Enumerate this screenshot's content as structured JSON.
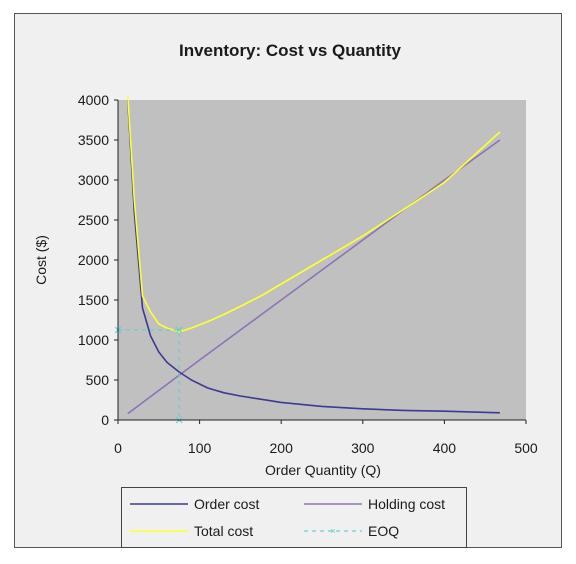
{
  "chart_data": {
    "type": "line",
    "title": "Inventory: Cost vs Quantity",
    "xlabel": "Order Quantity (Q)",
    "ylabel": "Cost ($)",
    "xlim": [
      0,
      500
    ],
    "ylim": [
      0,
      4000
    ],
    "x_ticks": [
      "0",
      "100",
      "200",
      "300",
      "400",
      "500"
    ],
    "y_ticks": [
      "0",
      "500",
      "1000",
      "1500",
      "2000",
      "2500",
      "3000",
      "3500",
      "4000"
    ],
    "grid": false,
    "legend_position": "bottom",
    "plot_background": "#c0c0c0",
    "series": [
      {
        "name": "Order cost",
        "color": "#3b3b8f",
        "dash": "solid",
        "x": [
          12,
          20,
          30,
          40,
          50,
          60,
          75,
          90,
          110,
          130,
          150,
          175,
          200,
          250,
          300,
          350,
          400,
          468
        ],
        "y": [
          4000,
          2600,
          1400,
          1050,
          850,
          720,
          600,
          500,
          400,
          340,
          300,
          260,
          220,
          170,
          140,
          120,
          110,
          90
        ]
      },
      {
        "name": "Holding cost",
        "color": "#8c74b6",
        "dash": "solid",
        "x": [
          12,
          100,
          200,
          300,
          400,
          468
        ],
        "y": [
          80,
          750,
          1500,
          2250,
          3000,
          3500
        ]
      },
      {
        "name": "Total cost",
        "color": "#ffff33",
        "dash": "solid",
        "x": [
          12,
          20,
          30,
          40,
          50,
          60,
          75,
          90,
          110,
          130,
          150,
          175,
          200,
          250,
          300,
          350,
          400,
          468
        ],
        "y": [
          4050,
          2750,
          1550,
          1350,
          1200,
          1150,
          1100,
          1150,
          1230,
          1320,
          1420,
          1550,
          1700,
          2000,
          2300,
          2630,
          2970,
          3600
        ]
      },
      {
        "name": "EOQ",
        "color": "#66cccc",
        "dash": "dashed",
        "x": [
          0,
          75,
          75
        ],
        "y": [
          1125,
          1125,
          0
        ]
      }
    ],
    "legend": [
      {
        "label": "Order cost"
      },
      {
        "label": "Holding cost"
      },
      {
        "label": "Total cost"
      },
      {
        "label": "EOQ"
      }
    ]
  }
}
